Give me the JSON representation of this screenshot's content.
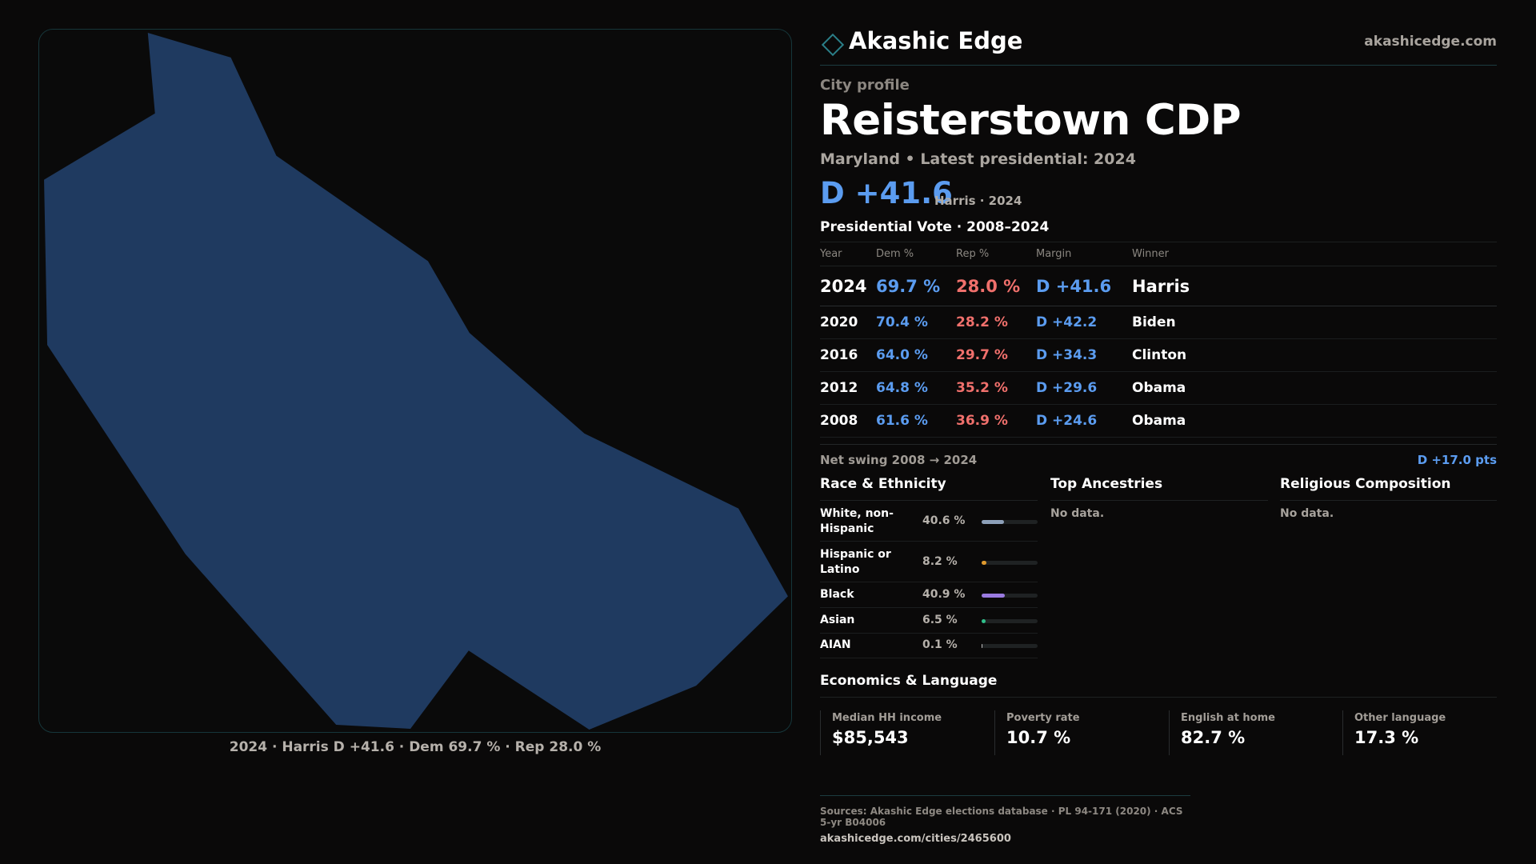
{
  "brand": {
    "name": "Akashic Edge",
    "url": "akashicedge.com"
  },
  "header": {
    "kicker": "City profile",
    "title": "Reisterstown CDP",
    "subtitle": "Maryland • Latest presidential: 2024",
    "margin": "D +41.6",
    "margin_note": "Harris · 2024"
  },
  "map": {
    "fill_color": "#1f3a60",
    "caption": "2024 · Harris D +41.6 · Dem 69.7 % · Rep 28.0 %"
  },
  "presidential": {
    "heading": "Presidential Vote · 2008–2024",
    "columns": [
      "Year",
      "Dem %",
      "Rep %",
      "Margin",
      "Winner"
    ],
    "rows": [
      {
        "year": "2024",
        "dem": "69.7 %",
        "rep": "28.0 %",
        "margin": "D +41.6",
        "winner": "Harris"
      },
      {
        "year": "2020",
        "dem": "70.4 %",
        "rep": "28.2 %",
        "margin": "D +42.2",
        "winner": "Biden"
      },
      {
        "year": "2016",
        "dem": "64.0 %",
        "rep": "29.7 %",
        "margin": "D +34.3",
        "winner": "Clinton"
      },
      {
        "year": "2012",
        "dem": "64.8 %",
        "rep": "35.2 %",
        "margin": "D +29.6",
        "winner": "Obama"
      },
      {
        "year": "2008",
        "dem": "61.6 %",
        "rep": "36.9 %",
        "margin": "D +24.6",
        "winner": "Obama"
      }
    ],
    "swing_label": "Net swing 2008 → 2024",
    "swing_value": "D +17.0 pts"
  },
  "race": {
    "heading": "Race & Ethnicity",
    "items": [
      {
        "name": "White, non-Hispanic",
        "pct": "40.6 %",
        "value": 40.6,
        "color": "#8d9fb8"
      },
      {
        "name": "Hispanic or Latino",
        "pct": "8.2 %",
        "value": 8.2,
        "color": "#e09a2e"
      },
      {
        "name": "Black",
        "pct": "40.9 %",
        "value": 40.9,
        "color": "#9a7ae0"
      },
      {
        "name": "Asian",
        "pct": "6.5 %",
        "value": 6.5,
        "color": "#2fbf8a"
      },
      {
        "name": "AIAN",
        "pct": "0.1 %",
        "value": 0.1,
        "color": "#c0c0c0"
      }
    ]
  },
  "ancestries": {
    "heading": "Top Ancestries",
    "empty": "No data."
  },
  "religion": {
    "heading": "Religious Composition",
    "empty": "No data."
  },
  "economics": {
    "heading": "Economics & Language",
    "cards": [
      {
        "label": "Median HH income",
        "value": "$85,543"
      },
      {
        "label": "Poverty rate",
        "value": "10.7 %"
      },
      {
        "label": "English at home",
        "value": "82.7 %"
      },
      {
        "label": "Other language",
        "value": "17.3 %"
      }
    ]
  },
  "footer": {
    "sources": "Sources: Akashic Edge elections database · PL 94-171 (2020) · ACS 5-yr B04006",
    "url": "akashicedge.com/cities/2465600"
  }
}
